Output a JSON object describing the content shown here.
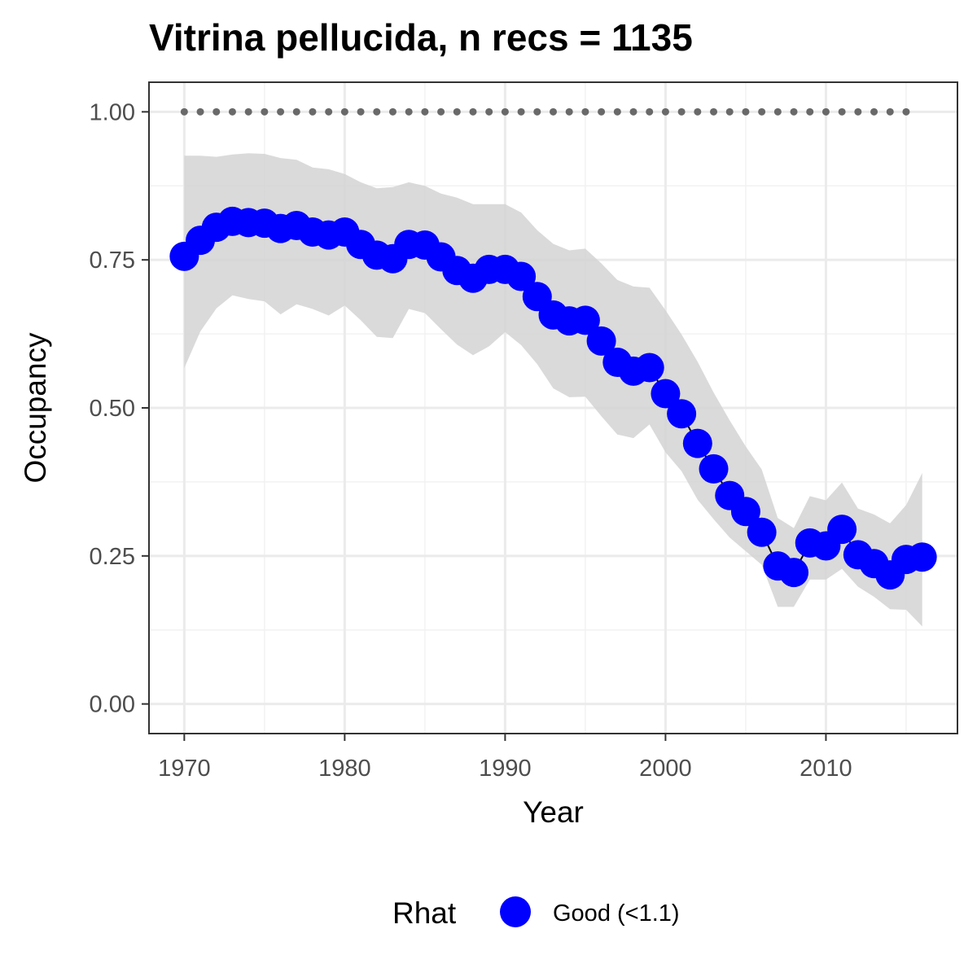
{
  "chart_data": {
    "type": "line",
    "title": "Vitrina pellucida, n recs = 1135",
    "xlabel": "Year",
    "ylabel": "Occupancy",
    "xlim": [
      1967.8,
      2018.2
    ],
    "ylim": [
      -0.05,
      1.05
    ],
    "x_ticks": [
      1970,
      1980,
      1990,
      2000,
      2010
    ],
    "x_tick_labels": [
      "1970",
      "1980",
      "1990",
      "2000",
      "2010"
    ],
    "y_ticks": [
      0,
      0.25,
      0.5,
      0.75,
      1.0
    ],
    "y_tick_labels": [
      "0.00",
      "0.25",
      "0.50",
      "0.75",
      "1.00"
    ],
    "grid": true,
    "x": [
      1970,
      1971,
      1972,
      1973,
      1974,
      1975,
      1976,
      1977,
      1978,
      1979,
      1980,
      1981,
      1982,
      1983,
      1984,
      1985,
      1986,
      1987,
      1988,
      1989,
      1990,
      1991,
      1992,
      1993,
      1994,
      1995,
      1996,
      1997,
      1998,
      1999,
      2000,
      2001,
      2002,
      2003,
      2004,
      2005,
      2006,
      2007,
      2008,
      2009,
      2010,
      2011,
      2012,
      2013,
      2014,
      2015,
      2016
    ],
    "series": [
      {
        "name": "Good (<1.1)",
        "color": "#0000ff",
        "values": [
          0.756,
          0.783,
          0.805,
          0.815,
          0.813,
          0.812,
          0.803,
          0.808,
          0.797,
          0.792,
          0.797,
          0.776,
          0.758,
          0.752,
          0.776,
          0.775,
          0.755,
          0.732,
          0.719,
          0.734,
          0.734,
          0.722,
          0.688,
          0.657,
          0.647,
          0.648,
          0.613,
          0.577,
          0.562,
          0.568,
          0.524,
          0.49,
          0.44,
          0.397,
          0.352,
          0.325,
          0.29,
          0.233,
          0.222,
          0.272,
          0.267,
          0.295,
          0.252,
          0.237,
          0.218,
          0.244,
          0.248
        ],
        "lower": [
          0.567,
          0.629,
          0.668,
          0.69,
          0.684,
          0.68,
          0.658,
          0.675,
          0.667,
          0.656,
          0.673,
          0.648,
          0.62,
          0.618,
          0.667,
          0.66,
          0.633,
          0.607,
          0.589,
          0.604,
          0.628,
          0.606,
          0.574,
          0.533,
          0.518,
          0.519,
          0.486,
          0.455,
          0.449,
          0.472,
          0.425,
          0.393,
          0.345,
          0.312,
          0.281,
          0.258,
          0.235,
          0.164,
          0.164,
          0.21,
          0.21,
          0.228,
          0.198,
          0.181,
          0.16,
          0.159,
          0.131
        ],
        "upper": [
          0.926,
          0.926,
          0.924,
          0.928,
          0.93,
          0.929,
          0.922,
          0.919,
          0.906,
          0.903,
          0.895,
          0.881,
          0.871,
          0.873,
          0.881,
          0.875,
          0.862,
          0.855,
          0.844,
          0.844,
          0.844,
          0.83,
          0.8,
          0.777,
          0.766,
          0.769,
          0.744,
          0.716,
          0.705,
          0.703,
          0.665,
          0.624,
          0.578,
          0.526,
          0.479,
          0.435,
          0.396,
          0.314,
          0.297,
          0.351,
          0.344,
          0.374,
          0.33,
          0.32,
          0.305,
          0.336,
          0.39
        ]
      }
    ],
    "reference_line": {
      "y": 1.0,
      "x": [
        1970,
        1971,
        1972,
        1973,
        1974,
        1975,
        1976,
        1977,
        1978,
        1979,
        1980,
        1981,
        1982,
        1983,
        1984,
        1985,
        1986,
        1987,
        1988,
        1989,
        1990,
        1991,
        1992,
        1993,
        1994,
        1995,
        1996,
        1997,
        1998,
        1999,
        2000,
        2001,
        2002,
        2003,
        2004,
        2005,
        2006,
        2007,
        2008,
        2009,
        2010,
        2011,
        2012,
        2013,
        2014,
        2015
      ],
      "style": "dotted",
      "color": "#696969"
    },
    "ribbon_color": "#d3d3d3",
    "legend": {
      "title": "Rhat",
      "label": "Good (<1.1)",
      "color": "#0000ff",
      "position": "bottom"
    }
  }
}
